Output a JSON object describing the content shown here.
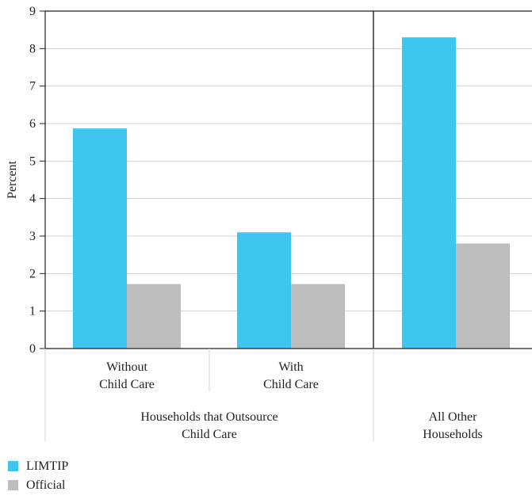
{
  "chart_data": {
    "type": "bar",
    "ylabel": "Percent",
    "ylim": [
      0,
      9
    ],
    "yticks": [
      "0",
      "1",
      "2",
      "3",
      "4",
      "5",
      "6",
      "7",
      "8",
      "9"
    ],
    "grid": true,
    "categories": [
      [
        "Without",
        "Child Care"
      ],
      [
        "With",
        "Child Care"
      ],
      [
        ""
      ]
    ],
    "groups": [
      {
        "label": [
          "Households that Outsource",
          "Child Care"
        ]
      },
      {
        "label": [
          "All Other",
          "Households"
        ]
      }
    ],
    "series": [
      {
        "name": "LIMTIP",
        "color": "#3fc6ef",
        "values": [
          5.87,
          3.1,
          8.3
        ]
      },
      {
        "name": "Official",
        "color": "#bcbec0",
        "values": [
          1.72,
          1.72,
          2.8
        ]
      }
    ],
    "legend_position": "bottom-left"
  }
}
